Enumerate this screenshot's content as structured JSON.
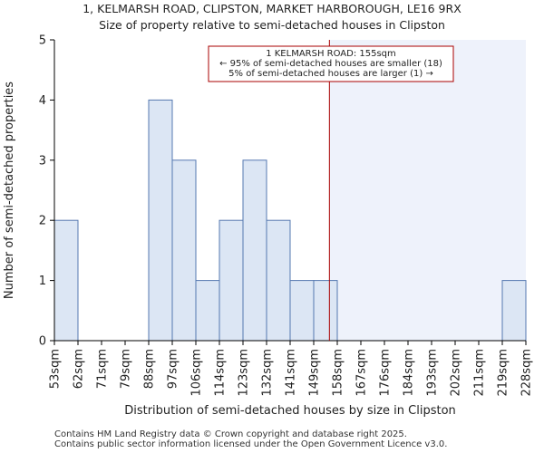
{
  "page": {
    "title_line1": "1, KELMARSH ROAD, CLIPSTON, MARKET HARBOROUGH, LE16 9RX",
    "title_line2": "Size of property relative to semi-detached houses in Clipston",
    "footer_line1": "Contains HM Land Registry data © Crown copyright and database right 2025.",
    "footer_line2": "Contains public sector information licensed under the Open Government Licence v3.0."
  },
  "chart_data": {
    "type": "bar",
    "title": "Size of property relative to semi-detached houses in Clipston",
    "xlabel": "Distribution of semi-detached houses by size in Clipston",
    "ylabel": "Number of semi-detached properties",
    "bin_edges": [
      53,
      62,
      71,
      79,
      88,
      97,
      106,
      114,
      123,
      132,
      141,
      149,
      158,
      167,
      176,
      184,
      193,
      202,
      211,
      219,
      228
    ],
    "tick_labels": [
      "53sqm",
      "62sqm",
      "71sqm",
      "79sqm",
      "88sqm",
      "97sqm",
      "106sqm",
      "114sqm",
      "123sqm",
      "132sqm",
      "141sqm",
      "149sqm",
      "158sqm",
      "167sqm",
      "176sqm",
      "184sqm",
      "193sqm",
      "202sqm",
      "211sqm",
      "219sqm",
      "228sqm"
    ],
    "values": [
      2,
      0,
      0,
      0,
      4,
      3,
      1,
      2,
      3,
      2,
      1,
      1,
      0,
      0,
      0,
      0,
      0,
      0,
      0,
      1
    ],
    "ylim": [
      0,
      5
    ],
    "yticks": [
      0,
      1,
      2,
      3,
      4,
      5
    ],
    "marker": {
      "value": 155,
      "color": "#aa0000",
      "annotation": [
        "1 KELMARSH ROAD: 155sqm",
        "← 95% of semi-detached houses are smaller (18)",
        "5% of semi-detached houses are larger (1) →"
      ]
    },
    "colors": {
      "bar_fill": "#dce6f4",
      "bar_stroke": "#5578b0",
      "shade": "#eef2fb",
      "annotation_border": "#aa0000"
    }
  }
}
